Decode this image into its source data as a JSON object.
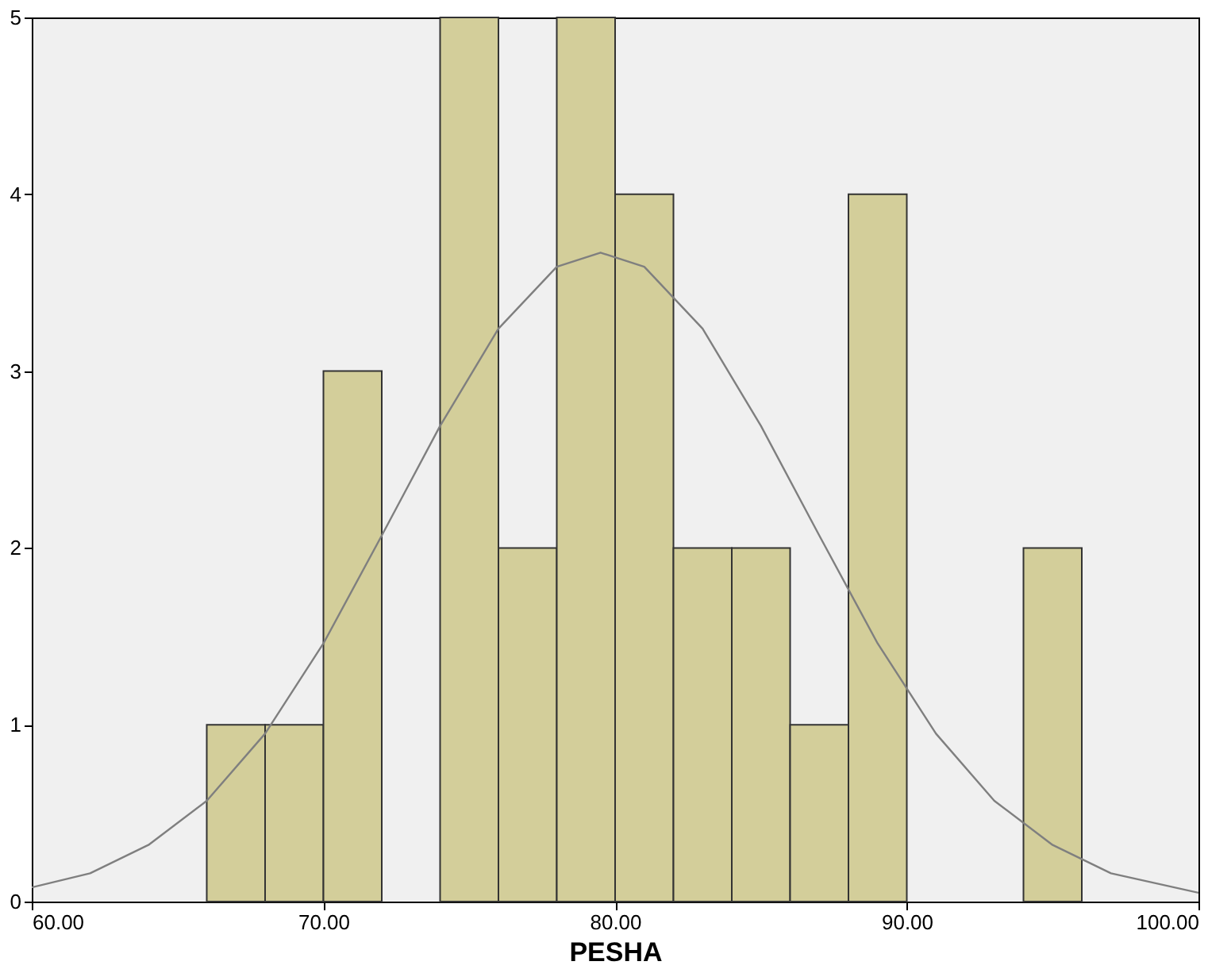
{
  "chart_data": {
    "type": "histogram",
    "xlabel": "PESHA",
    "xlim": [
      60,
      100
    ],
    "ylim": [
      0,
      5
    ],
    "xticks": [
      {
        "value": 60,
        "label": "60.00"
      },
      {
        "value": 70,
        "label": "70.00"
      },
      {
        "value": 80,
        "label": "80.00"
      },
      {
        "value": 90,
        "label": "90.00"
      },
      {
        "value": 100,
        "label": "100.00"
      }
    ],
    "yticks": [
      0,
      1,
      2,
      3,
      4,
      5
    ],
    "grid": false,
    "series": [
      {
        "type": "histogram",
        "color": "#d3ce9a",
        "bins": [
          66,
          68,
          70,
          72,
          74,
          76,
          78,
          80,
          82,
          84,
          86,
          88,
          90,
          92,
          94,
          96
        ],
        "values": [
          1,
          1,
          3,
          0,
          5,
          2,
          5,
          4,
          2,
          2,
          1,
          4,
          0,
          0,
          2
        ]
      },
      {
        "type": "line",
        "color": "#7f7f7f",
        "x": [
          60,
          62,
          64,
          66,
          68,
          70,
          72,
          74,
          76,
          78,
          79.5,
          81,
          83,
          85,
          87,
          89,
          91,
          93,
          95,
          97,
          100
        ],
        "values": [
          0.08,
          0.16,
          0.32,
          0.57,
          0.95,
          1.46,
          2.07,
          2.69,
          3.24,
          3.59,
          3.67,
          3.59,
          3.24,
          2.69,
          2.07,
          1.46,
          0.95,
          0.57,
          0.32,
          0.16,
          0.05
        ]
      }
    ]
  }
}
